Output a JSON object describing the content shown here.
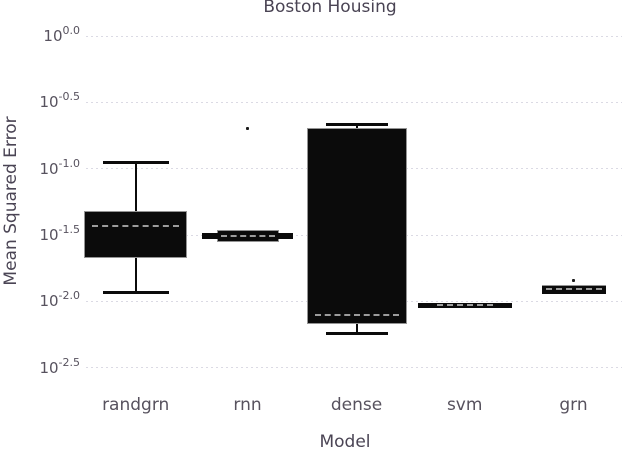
{
  "chart_data": {
    "type": "box",
    "title": "Boston Housing",
    "xlabel": "Model",
    "ylabel": "Mean Squared Error",
    "y_scale": "log10",
    "y_axis_note": "tick labels rendered as 10 raised to exponent",
    "y_ticks": [
      {
        "exp_label": "0.0",
        "value": 0.0
      },
      {
        "exp_label": "-0.5",
        "value": -0.5
      },
      {
        "exp_label": "-1.0",
        "value": -1.0
      },
      {
        "exp_label": "-1.5",
        "value": -1.5
      },
      {
        "exp_label": "-2.0",
        "value": -2.0
      },
      {
        "exp_label": "-2.5",
        "value": -2.5
      }
    ],
    "ylim": [
      0.0,
      -2.5
    ],
    "categories": [
      "randgrn",
      "rnn",
      "dense",
      "svm",
      "grn"
    ],
    "boxes": [
      {
        "model": "randgrn",
        "whisker_high": -0.95,
        "q3": -1.32,
        "median": -1.43,
        "q1": -1.67,
        "whisker_low": -1.93,
        "outliers": []
      },
      {
        "model": "rnn",
        "whisker_high": -1.46,
        "q3": -1.49,
        "median": -1.51,
        "q1": -1.52,
        "whisker_low": -1.55,
        "outliers": [
          -0.7
        ]
      },
      {
        "model": "dense",
        "whisker_high": -0.67,
        "q3": -0.69,
        "median": -2.1,
        "q1": -2.17,
        "whisker_low": -2.24,
        "outliers": []
      },
      {
        "model": "svm",
        "whisker_high": -2.01,
        "q3": -2.02,
        "median": -2.03,
        "q1": -2.04,
        "whisker_low": -2.05,
        "outliers": []
      },
      {
        "model": "grn",
        "whisker_high": -1.88,
        "q3": -1.89,
        "median": -1.91,
        "q1": -1.94,
        "whisker_low": -1.94,
        "outliers": [
          -1.84
        ]
      }
    ],
    "values_unit": "log10 of Mean Squared Error",
    "grid": "horizontal dashed",
    "legend": "none"
  },
  "colors": {
    "box_fill": "#0b0b0b",
    "median_dash": "#9c9c9c",
    "gridline": "#dbdae4",
    "title_text": "#4a4454",
    "tick_text": "#57525e",
    "background": "#ffffff"
  }
}
